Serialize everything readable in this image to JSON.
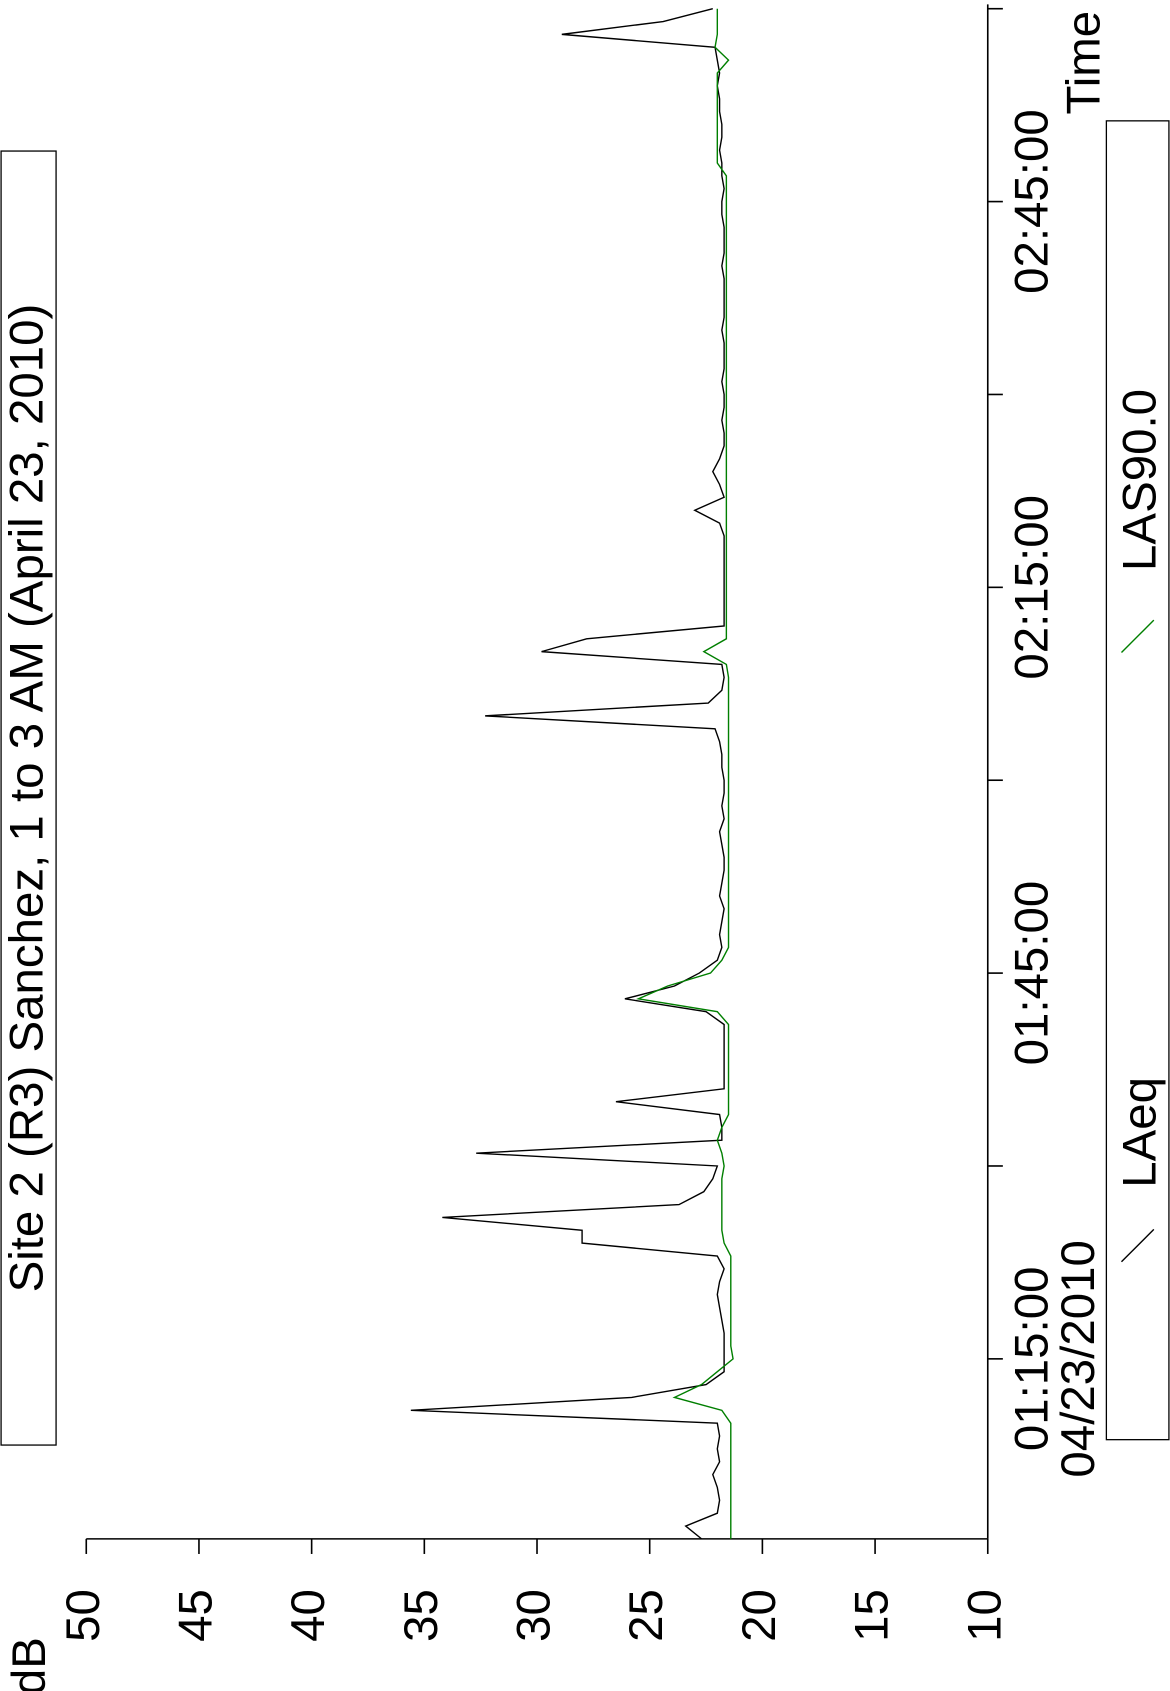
{
  "chart_data": {
    "type": "line",
    "title": "Site 2 (R3) Sanchez, 1 to 3 AM (April 23, 2010)",
    "xlabel": "Time",
    "ylabel": "dB",
    "annotation": "04/23/2010",
    "x": [
      "01:01:00",
      "01:02:00",
      "01:03:00",
      "01:04:00",
      "01:05:00",
      "01:06:00",
      "01:07:00",
      "01:08:00",
      "01:09:00",
      "01:10:00",
      "01:11:00",
      "01:12:00",
      "01:13:00",
      "01:14:00",
      "01:15:00",
      "01:16:00",
      "01:17:00",
      "01:18:00",
      "01:19:00",
      "01:20:00",
      "01:21:00",
      "01:22:00",
      "01:23:00",
      "01:24:00",
      "01:25:00",
      "01:26:00",
      "01:27:00",
      "01:28:00",
      "01:29:00",
      "01:30:00",
      "01:31:00",
      "01:32:00",
      "01:33:00",
      "01:34:00",
      "01:35:00",
      "01:36:00",
      "01:37:00",
      "01:38:00",
      "01:39:00",
      "01:40:00",
      "01:41:00",
      "01:42:00",
      "01:43:00",
      "01:44:00",
      "01:45:00",
      "01:46:00",
      "01:47:00",
      "01:48:00",
      "01:49:00",
      "01:50:00",
      "01:51:00",
      "01:52:00",
      "01:53:00",
      "01:54:00",
      "01:55:00",
      "01:56:00",
      "01:57:00",
      "01:58:00",
      "01:59:00",
      "02:00:00",
      "02:01:00",
      "02:02:00",
      "02:03:00",
      "02:04:00",
      "02:05:00",
      "02:06:00",
      "02:07:00",
      "02:08:00",
      "02:09:00",
      "02:10:00",
      "02:11:00",
      "02:12:00",
      "02:13:00",
      "02:14:00",
      "02:15:00",
      "02:16:00",
      "02:17:00",
      "02:18:00",
      "02:19:00",
      "02:20:00",
      "02:21:00",
      "02:22:00",
      "02:23:00",
      "02:24:00",
      "02:25:00",
      "02:26:00",
      "02:27:00",
      "02:28:00",
      "02:29:00",
      "02:30:00",
      "02:31:00",
      "02:32:00",
      "02:33:00",
      "02:34:00",
      "02:35:00",
      "02:36:00",
      "02:37:00",
      "02:38:00",
      "02:39:00",
      "02:40:00",
      "02:41:00",
      "02:42:00",
      "02:43:00",
      "02:44:00",
      "02:45:00",
      "02:46:00",
      "02:47:00",
      "02:48:00",
      "02:49:00",
      "02:50:00",
      "02:51:00",
      "02:52:00",
      "02:53:00",
      "02:54:00",
      "02:55:00",
      "02:56:00",
      "02:57:00",
      "02:58:00",
      "02:59:00",
      "03:00:00"
    ],
    "series": [
      {
        "name": "LAeq",
        "color": "#000000",
        "values": [
          22.7,
          23.4,
          22.0,
          21.9,
          22.0,
          22.2,
          21.9,
          22.0,
          21.9,
          22.0,
          35.6,
          25.8,
          22.5,
          21.7,
          21.7,
          21.7,
          21.7,
          21.8,
          21.9,
          22.0,
          21.9,
          21.7,
          22.0,
          28.0,
          28.0,
          34.2,
          23.7,
          22.6,
          22.2,
          22.0,
          32.7,
          21.8,
          21.8,
          21.9,
          26.5,
          21.7,
          21.7,
          21.7,
          21.7,
          21.7,
          21.7,
          22.5,
          26.1,
          23.9,
          22.8,
          22.0,
          21.8,
          21.9,
          21.8,
          21.7,
          21.9,
          21.8,
          21.7,
          21.7,
          21.8,
          21.9,
          21.7,
          21.8,
          21.7,
          21.7,
          21.8,
          21.8,
          21.9,
          22.1,
          32.3,
          22.4,
          21.8,
          21.7,
          21.8,
          29.8,
          27.8,
          21.7,
          21.7,
          21.7,
          21.7,
          21.7,
          21.7,
          21.7,
          21.7,
          21.9,
          23.0,
          21.7,
          21.9,
          22.2,
          21.9,
          21.7,
          21.7,
          21.8,
          21.7,
          21.7,
          21.8,
          21.7,
          21.7,
          21.7,
          21.8,
          21.7,
          21.7,
          21.7,
          21.7,
          21.8,
          21.7,
          21.7,
          21.7,
          21.8,
          21.8,
          21.7,
          21.8,
          21.8,
          21.9,
          21.8,
          21.8,
          21.9,
          21.9,
          22.0,
          21.9,
          22.0,
          22.1,
          28.9,
          24.4,
          22.2
        ]
      },
      {
        "name": "LAS90.0",
        "color": "#007f00",
        "values": [
          21.4,
          21.4,
          21.4,
          21.4,
          21.4,
          21.4,
          21.4,
          21.4,
          21.4,
          21.4,
          21.8,
          23.9,
          22.7,
          22.0,
          21.3,
          21.4,
          21.4,
          21.4,
          21.4,
          21.4,
          21.4,
          21.4,
          21.4,
          21.7,
          21.8,
          21.8,
          21.8,
          21.8,
          21.8,
          21.7,
          21.8,
          22.0,
          21.8,
          21.5,
          21.5,
          21.5,
          21.5,
          21.5,
          21.5,
          21.5,
          21.5,
          22.0,
          25.5,
          24.2,
          22.3,
          21.8,
          21.5,
          21.5,
          21.5,
          21.5,
          21.5,
          21.5,
          21.5,
          21.5,
          21.5,
          21.5,
          21.5,
          21.5,
          21.5,
          21.5,
          21.5,
          21.5,
          21.5,
          21.5,
          21.5,
          21.5,
          21.5,
          21.5,
          21.6,
          22.6,
          21.6,
          21.6,
          21.6,
          21.6,
          21.6,
          21.6,
          21.6,
          21.6,
          21.6,
          21.6,
          21.6,
          21.6,
          21.6,
          21.6,
          21.6,
          21.6,
          21.6,
          21.6,
          21.6,
          21.6,
          21.6,
          21.6,
          21.6,
          21.6,
          21.6,
          21.6,
          21.6,
          21.6,
          21.6,
          21.6,
          21.6,
          21.6,
          21.6,
          21.6,
          21.6,
          21.6,
          21.6,
          22.0,
          22.0,
          22.0,
          22.0,
          22.0,
          22.0,
          22.0,
          22.0,
          21.5,
          22.1,
          22.0,
          22.0,
          22.0
        ]
      }
    ],
    "xlim": [
      "01:01:00",
      "03:00:00"
    ],
    "xticks": [
      "01:15:00",
      "01:45:00",
      "02:15:00",
      "02:45:00"
    ],
    "xminorticks": [
      "01:30:00",
      "02:00:00",
      "02:30:00",
      "03:00:00"
    ],
    "ylim": [
      10,
      50
    ],
    "yticks": [
      10,
      15,
      20,
      25,
      30,
      35,
      40,
      45,
      50
    ]
  }
}
